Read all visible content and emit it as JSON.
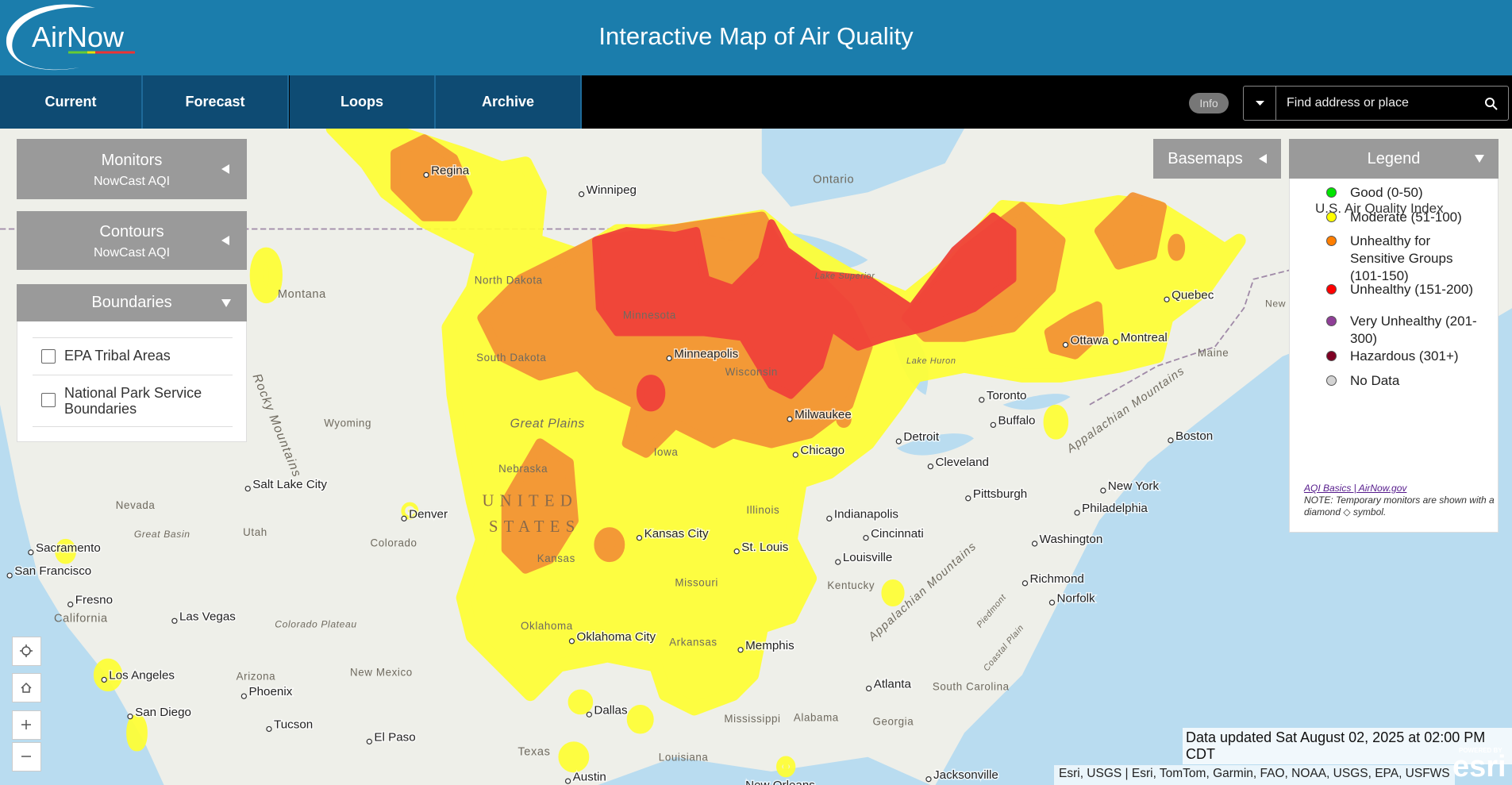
{
  "header": {
    "logo": "AirNow",
    "title": "Interactive Map of Air Quality"
  },
  "nav": {
    "tabs": [
      "Current",
      "Forecast",
      "Loops",
      "Archive"
    ],
    "info": "Info",
    "search_placeholder": "Find address or place"
  },
  "panels": {
    "monitors": {
      "title": "Monitors",
      "subtitle": "NowCast AQI"
    },
    "contours": {
      "title": "Contours",
      "subtitle": "NowCast AQI"
    },
    "boundaries": {
      "title": "Boundaries",
      "options": [
        "EPA Tribal Areas",
        "National Park Service Boundaries"
      ]
    }
  },
  "basemaps": "Basemaps",
  "legend": {
    "title": "Legend",
    "heading": "U.S. Air Quality Index",
    "items": [
      {
        "label": "Good (0-50)",
        "color": "#00e400"
      },
      {
        "label": "Moderate (51-100)",
        "color": "#ffff00"
      },
      {
        "label": "Unhealthy for Sensitive Groups (101-150)",
        "color": "#ff7e00"
      },
      {
        "label": "Unhealthy (151-200)",
        "color": "#ff0000"
      },
      {
        "label": "Very Unhealthy (201-300)",
        "color": "#8f3f97"
      },
      {
        "label": "Hazardous (301+)",
        "color": "#7e0023"
      },
      {
        "label": "No Data",
        "color": "#d3d3d3"
      }
    ],
    "link": "AQI Basics | AirNow.gov",
    "note": "NOTE: Temporary monitors are shown with a diamond ◇ symbol."
  },
  "map": {
    "cities": [
      "Regina",
      "Winnipeg",
      "Salt Lake City",
      "Denver",
      "Sacramento",
      "San Francisco",
      "Fresno",
      "Las Vegas",
      "Los Angeles",
      "San Diego",
      "Phoenix",
      "Tucson",
      "El Paso",
      "Minneapolis",
      "Milwaukee",
      "Chicago",
      "Kansas City",
      "St. Louis",
      "Oklahoma City",
      "Dallas",
      "Austin",
      "Memphis",
      "Indianapolis",
      "Cincinnati",
      "Louisville",
      "Detroit",
      "Cleveland",
      "Toronto",
      "Buffalo",
      "Pittsburgh",
      "Atlanta",
      "Washington",
      "Richmond",
      "Norfolk",
      "Philadelphia",
      "New York",
      "Boston",
      "Montreal",
      "Ottawa",
      "Quebec",
      "Jacksonville",
      "New Orleans"
    ],
    "regions": [
      "Ontario",
      "Montana",
      "North Dakota",
      "South Dakota",
      "Minnesota",
      "Wisconsin",
      "Wyoming",
      "Nebraska",
      "Iowa",
      "Illinois",
      "Missouri",
      "Kansas",
      "Oklahoma",
      "Arkansas",
      "Texas",
      "Nevada",
      "Utah",
      "Colorado",
      "California",
      "Arizona",
      "New Mexico",
      "Kentucky",
      "Mississippi",
      "Alabama",
      "Georgia",
      "Louisiana",
      "South Carolina",
      "Maine",
      "New Brunswick",
      "Lake Superior",
      "Lake Huron",
      "Great Plains",
      "Great Basin",
      "Colorado Plateau",
      "Piedmont",
      "Coastal Plain"
    ],
    "country": [
      "UNITED",
      "STATES"
    ],
    "mountains": [
      "Rocky Mountains",
      "Appalachian Mountains",
      "Appalachian Mountains"
    ]
  },
  "status": "Data updated Sat August 02, 2025 at 02:00 PM CDT",
  "attribution": "Esri, USGS | Esri, TomTom, Garmin, FAO, NOAA, USGS, EPA, USFWS",
  "esri": {
    "powered": "POWERED BY",
    "logo": "esri"
  }
}
